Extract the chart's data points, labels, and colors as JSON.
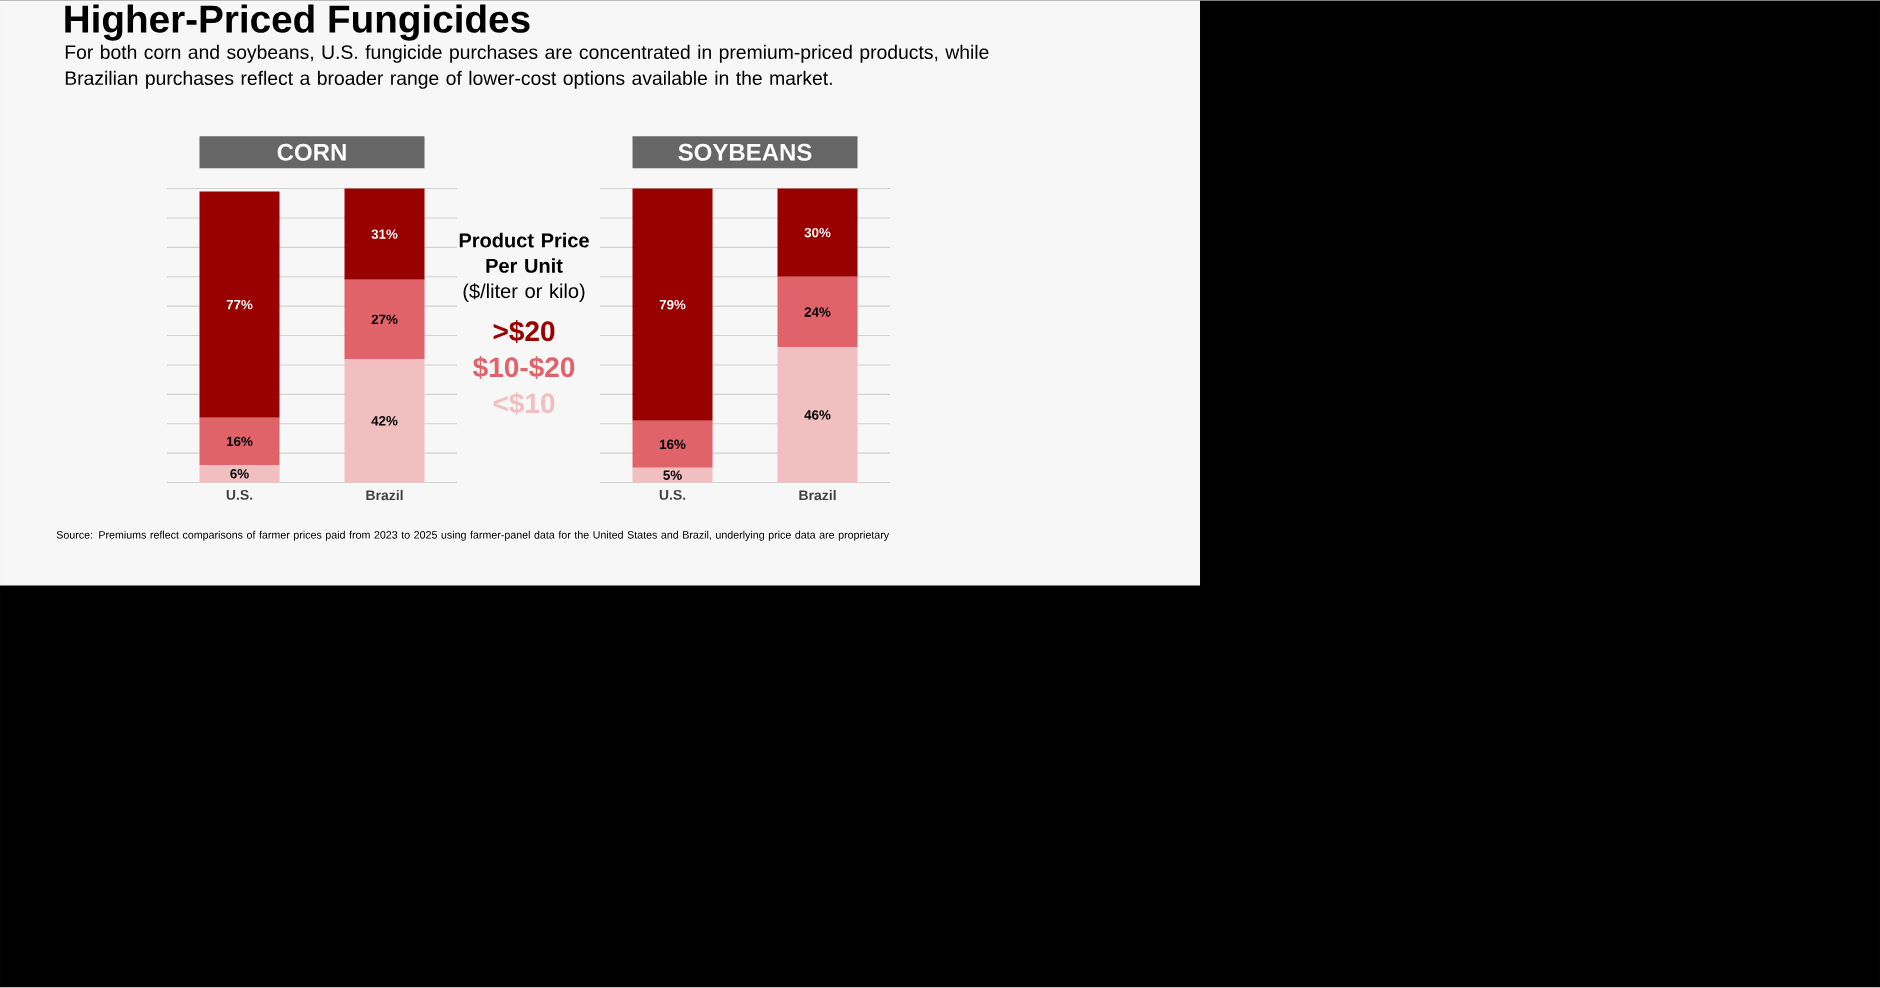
{
  "chart_data": [
    {
      "type": "other",
      "title": "Higher-Priced Fungicides",
      "subtitle": "For both corn and soybeans, U.S. fungicide purchases are concentrated in premium-priced products, while Brazilian purchases reflect a broader range of lower-cost options available in the market.",
      "annotations": [
        "Source: Premiums reflect comparisons of farmer prices paid from 2023 to 2025 using farmer-panel data for the United States and Brazil, underlying price data are proprietary"
      ]
    },
    {
      "type": "bar",
      "title": "CORN",
      "categories": [
        "U.S.",
        "Brazil"
      ],
      "stacked": true,
      "ylim": [
        0,
        100
      ],
      "yticks": [
        {
          "value": 0,
          "label": null
        },
        {
          "value": 10,
          "label": null
        },
        {
          "value": 20,
          "label": null
        },
        {
          "value": 30,
          "label": null
        },
        {
          "value": 40,
          "label": null
        },
        {
          "value": 50,
          "label": null
        },
        {
          "value": 60,
          "label": null
        },
        {
          "value": 70,
          "label": null
        },
        {
          "value": 80,
          "label": null
        },
        {
          "value": 90,
          "label": null
        },
        {
          "value": 100,
          "label": null
        }
      ],
      "tick_labels": "x",
      "grid": "y",
      "legend": "right",
      "legend_title": "**Product Price Per Unit** ($/liter or kilo)",
      "series": [
        {
          "name": "<$10",
          "color": "#f2bfc0",
          "values": [
            6,
            42
          ],
          "value_labels": [
            "6%",
            "42%"
          ]
        },
        {
          "name": "$10-$20",
          "color": "#e0636a",
          "values": [
            16,
            27
          ],
          "value_labels": [
            "16%",
            "27%"
          ]
        },
        {
          "name": ">$20",
          "color": "#990000",
          "values": [
            77,
            31
          ],
          "value_labels": [
            "77%",
            "31%"
          ]
        }
      ]
    },
    {
      "type": "bar",
      "title": "SOYBEANS",
      "categories": [
        "U.S.",
        "Brazil"
      ],
      "stacked": true,
      "ylim": [
        0,
        100
      ],
      "yticks": [
        {
          "value": 0,
          "label": null
        },
        {
          "value": 10,
          "label": null
        },
        {
          "value": 20,
          "label": null
        },
        {
          "value": 30,
          "label": null
        },
        {
          "value": 40,
          "label": null
        },
        {
          "value": 50,
          "label": null
        },
        {
          "value": 60,
          "label": null
        },
        {
          "value": 70,
          "label": null
        },
        {
          "value": 80,
          "label": null
        },
        {
          "value": 90,
          "label": null
        },
        {
          "value": 100,
          "label": null
        }
      ],
      "tick_labels": "x",
      "grid": "y",
      "series": [
        {
          "color": "#f2bfc0",
          "values": [
            5,
            46
          ],
          "value_labels": [
            "5%",
            "46%"
          ]
        },
        {
          "color": "#e0636a",
          "values": [
            16,
            24
          ],
          "value_labels": [
            "16%",
            "24%"
          ]
        },
        {
          "color": "#990000",
          "values": [
            79,
            30
          ],
          "value_labels": [
            "79%",
            "30%"
          ]
        }
      ]
    }
  ]
}
